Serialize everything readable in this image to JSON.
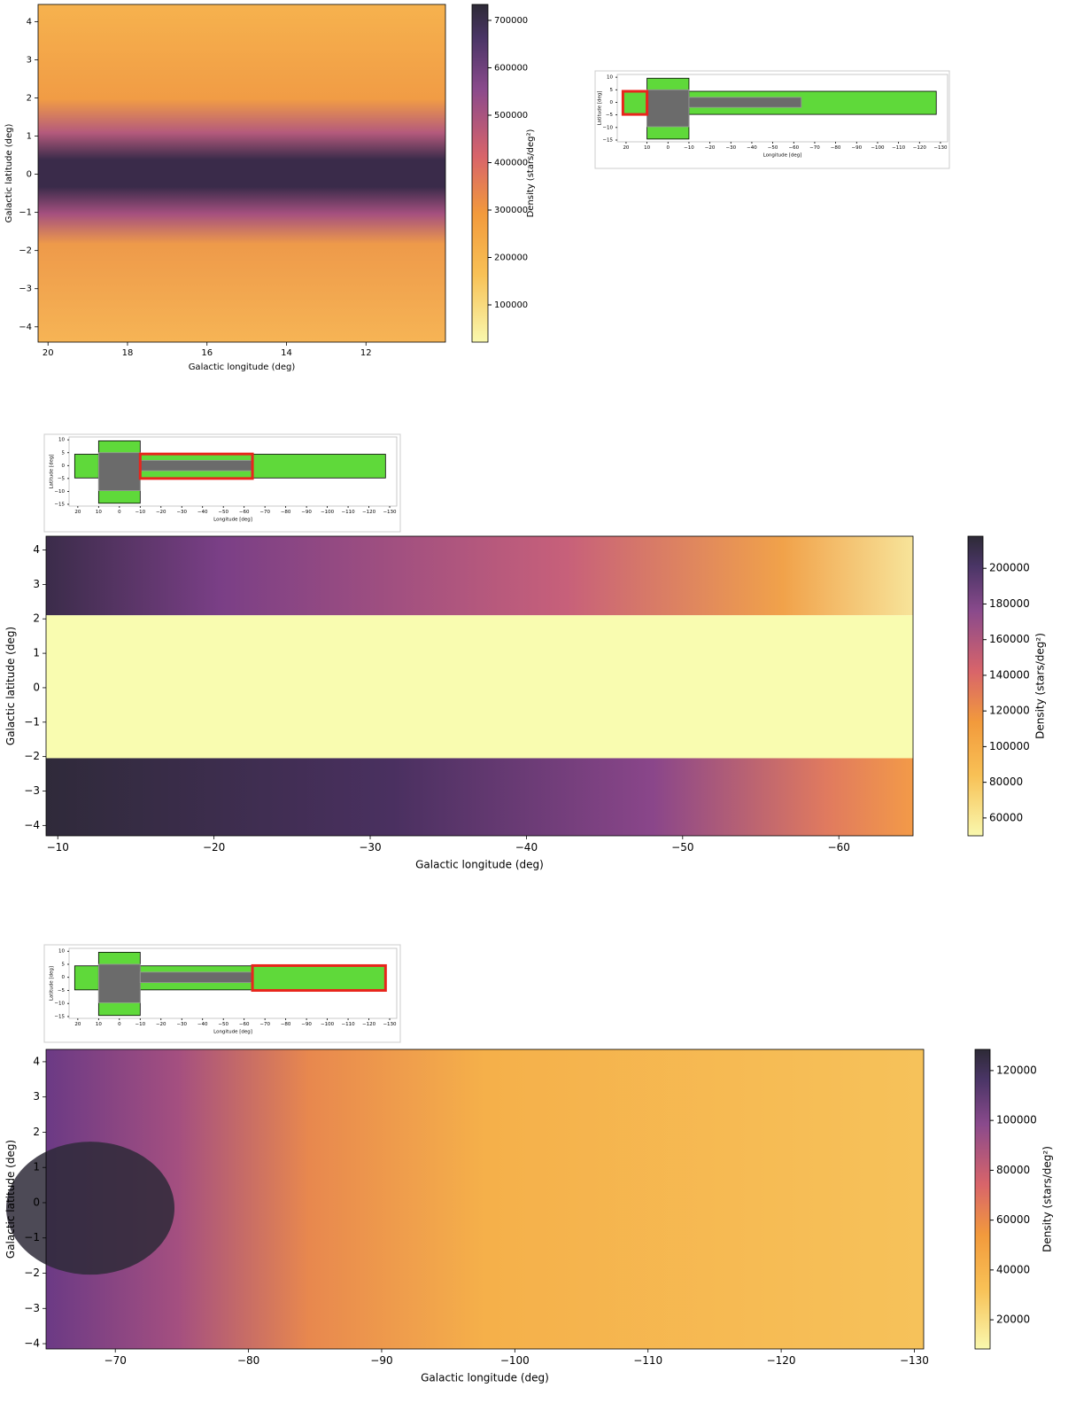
{
  "chart_data": [
    {
      "type": "heatmap",
      "xlabel": "Galactic longitude (deg)",
      "ylabel": "Galactic latitude (deg)",
      "colorbar_label": "Density (stars/deg²)",
      "xlim": [
        20.25,
        10
      ],
      "ylim": [
        -4.4,
        4.45
      ],
      "xticks": [
        20,
        18,
        16,
        14,
        12
      ],
      "yticks": [
        {
          "value": -4,
          "label": "−4"
        },
        {
          "value": -3,
          "label": "−3"
        },
        {
          "value": -2,
          "label": "−2"
        },
        {
          "value": -1,
          "label": "−1"
        },
        0,
        1,
        2,
        3,
        4
      ],
      "clim": [
        21500,
        733600
      ],
      "cticks": [
        100000,
        200000,
        300000,
        400000,
        500000,
        600000,
        700000
      ]
    },
    {
      "type": "footprint",
      "xlabel": "Longitude [deg]",
      "ylabel": "Latitude [deg]",
      "xlim": [
        24.2,
        -133.4
      ],
      "ylim": [
        -15.7,
        11.1
      ],
      "xticks": [
        20,
        10,
        0,
        {
          "value": -10,
          "label": "−10"
        },
        {
          "value": -20,
          "label": "−20"
        },
        {
          "value": -30,
          "label": "−30"
        },
        {
          "value": -40,
          "label": "−40"
        },
        {
          "value": -50,
          "label": "−50"
        },
        {
          "value": -60,
          "label": "−60"
        },
        {
          "value": -70,
          "label": "−70"
        },
        {
          "value": -80,
          "label": "−80"
        },
        {
          "value": -90,
          "label": "−90"
        },
        {
          "value": -100,
          "label": "−100"
        },
        {
          "value": -110,
          "label": "−110"
        },
        {
          "value": -120,
          "label": "−120"
        },
        {
          "value": -130,
          "label": "−130"
        }
      ],
      "yticks": [
        {
          "value": -15,
          "label": "−15"
        },
        {
          "value": -10,
          "label": "−10"
        },
        {
          "value": -5,
          "label": "−5"
        },
        0,
        5,
        10
      ],
      "regions": [
        {
          "xlim": [
            21.5,
            -128
          ],
          "ylim": [
            -4.8,
            4.4
          ],
          "color": "#5fd93a"
        },
        {
          "xlim": [
            10,
            -10
          ],
          "ylim": [
            -14.6,
            9.6
          ],
          "color": "#5fd93a"
        },
        {
          "xlim": [
            10,
            -10
          ],
          "ylim": [
            -9.7,
            5
          ],
          "color": "#6b6b6b"
        },
        {
          "xlim": [
            -10,
            -63.6
          ],
          "ylim": [
            -2,
            2
          ],
          "color": "#6b6b6b"
        }
      ],
      "highlight": {
        "xlim": [
          21.5,
          10
        ],
        "ylim": [
          -4.8,
          4.4
        ],
        "color": "#e8251c"
      }
    },
    {
      "type": "footprint",
      "xlabel": "Longitude [deg]",
      "ylabel": "Latitude [deg]",
      "xlim": [
        24.2,
        -133.4
      ],
      "ylim": [
        -15.7,
        11.1
      ],
      "xticks": [
        20,
        10,
        0,
        {
          "value": -10,
          "label": "−10"
        },
        {
          "value": -20,
          "label": "−20"
        },
        {
          "value": -30,
          "label": "−30"
        },
        {
          "value": -40,
          "label": "−40"
        },
        {
          "value": -50,
          "label": "−50"
        },
        {
          "value": -60,
          "label": "−60"
        },
        {
          "value": -70,
          "label": "−70"
        },
        {
          "value": -80,
          "label": "−80"
        },
        {
          "value": -90,
          "label": "−90"
        },
        {
          "value": -100,
          "label": "−100"
        },
        {
          "value": -110,
          "label": "−110"
        },
        {
          "value": -120,
          "label": "−120"
        },
        {
          "value": -130,
          "label": "−130"
        }
      ],
      "yticks": [
        {
          "value": -15,
          "label": "−15"
        },
        {
          "value": -10,
          "label": "−10"
        },
        {
          "value": -5,
          "label": "−5"
        },
        0,
        5,
        10
      ],
      "regions": [
        {
          "xlim": [
            21.5,
            -128
          ],
          "ylim": [
            -4.8,
            4.4
          ],
          "color": "#5fd93a"
        },
        {
          "xlim": [
            10,
            -10
          ],
          "ylim": [
            -14.6,
            9.6
          ],
          "color": "#5fd93a"
        },
        {
          "xlim": [
            10,
            -10
          ],
          "ylim": [
            -9.7,
            5
          ],
          "color": "#6b6b6b"
        },
        {
          "xlim": [
            -10,
            -63.6
          ],
          "ylim": [
            -2,
            2
          ],
          "color": "#6b6b6b"
        }
      ],
      "highlight": {
        "xlim": [
          -10,
          -64
        ],
        "ylim": [
          -5,
          4.5
        ],
        "color": "#e8251c"
      }
    },
    {
      "type": "heatmap",
      "xlabel": "Galactic longitude (deg)",
      "ylabel": "Galactic latitude (deg)",
      "colorbar_label": "Density (stars/deg²)",
      "xlim": [
        -9.25,
        -64.75
      ],
      "ylim": [
        -4.3,
        4.4
      ],
      "xticks": [
        {
          "value": -10,
          "label": "−10"
        },
        {
          "value": -20,
          "label": "−20"
        },
        {
          "value": -30,
          "label": "−30"
        },
        {
          "value": -40,
          "label": "−40"
        },
        {
          "value": -50,
          "label": "−50"
        },
        {
          "value": -60,
          "label": "−60"
        }
      ],
      "yticks": [
        {
          "value": -4,
          "label": "−4"
        },
        {
          "value": -3,
          "label": "−3"
        },
        {
          "value": -2,
          "label": "−2"
        },
        {
          "value": -1,
          "label": "−1"
        },
        0,
        1,
        2,
        3,
        4
      ],
      "clim": [
        50000,
        218000
      ],
      "cticks": [
        60000,
        80000,
        100000,
        120000,
        140000,
        160000,
        180000,
        200000
      ]
    },
    {
      "type": "footprint",
      "xlabel": "Longitude [deg]",
      "ylabel": "Latitude [deg]",
      "xlim": [
        24.2,
        -133.4
      ],
      "ylim": [
        -15.7,
        11.1
      ],
      "xticks": [
        20,
        10,
        0,
        {
          "value": -10,
          "label": "−10"
        },
        {
          "value": -20,
          "label": "−20"
        },
        {
          "value": -30,
          "label": "−30"
        },
        {
          "value": -40,
          "label": "−40"
        },
        {
          "value": -50,
          "label": "−50"
        },
        {
          "value": -60,
          "label": "−60"
        },
        {
          "value": -70,
          "label": "−70"
        },
        {
          "value": -80,
          "label": "−80"
        },
        {
          "value": -90,
          "label": "−90"
        },
        {
          "value": -100,
          "label": "−100"
        },
        {
          "value": -110,
          "label": "−110"
        },
        {
          "value": -120,
          "label": "−120"
        },
        {
          "value": -130,
          "label": "−130"
        }
      ],
      "yticks": [
        {
          "value": -15,
          "label": "−15"
        },
        {
          "value": -10,
          "label": "−10"
        },
        {
          "value": -5,
          "label": "−5"
        },
        0,
        5,
        10
      ],
      "regions": [
        {
          "xlim": [
            21.5,
            -128
          ],
          "ylim": [
            -4.8,
            4.4
          ],
          "color": "#5fd93a"
        },
        {
          "xlim": [
            10,
            -10
          ],
          "ylim": [
            -14.6,
            9.6
          ],
          "color": "#5fd93a"
        },
        {
          "xlim": [
            10,
            -10
          ],
          "ylim": [
            -9.7,
            5
          ],
          "color": "#6b6b6b"
        },
        {
          "xlim": [
            -10,
            -63.6
          ],
          "ylim": [
            -2,
            2
          ],
          "color": "#6b6b6b"
        }
      ],
      "highlight": {
        "xlim": [
          -64,
          -128
        ],
        "ylim": [
          -5,
          4.5
        ],
        "color": "#e8251c"
      }
    },
    {
      "type": "heatmap",
      "xlabel": "Galactic longitude (deg)",
      "ylabel": "Galactic latitude (deg)",
      "colorbar_label": "Density (stars/deg²)",
      "xlim": [
        -64.8,
        -130.7
      ],
      "ylim": [
        -4.15,
        4.35
      ],
      "xticks": [
        {
          "value": -70,
          "label": "−70"
        },
        {
          "value": -80,
          "label": "−80"
        },
        {
          "value": -90,
          "label": "−90"
        },
        {
          "value": -100,
          "label": "−100"
        },
        {
          "value": -110,
          "label": "−110"
        },
        {
          "value": -120,
          "label": "−120"
        },
        {
          "value": -130,
          "label": "−130"
        }
      ],
      "yticks": [
        {
          "value": -4,
          "label": "−4"
        },
        {
          "value": -3,
          "label": "−3"
        },
        {
          "value": -2,
          "label": "−2"
        },
        {
          "value": -1,
          "label": "−1"
        },
        0,
        1,
        2,
        3,
        4
      ],
      "clim": [
        8300,
        128500
      ],
      "cticks": [
        20000,
        40000,
        60000,
        80000,
        100000,
        120000
      ]
    }
  ]
}
